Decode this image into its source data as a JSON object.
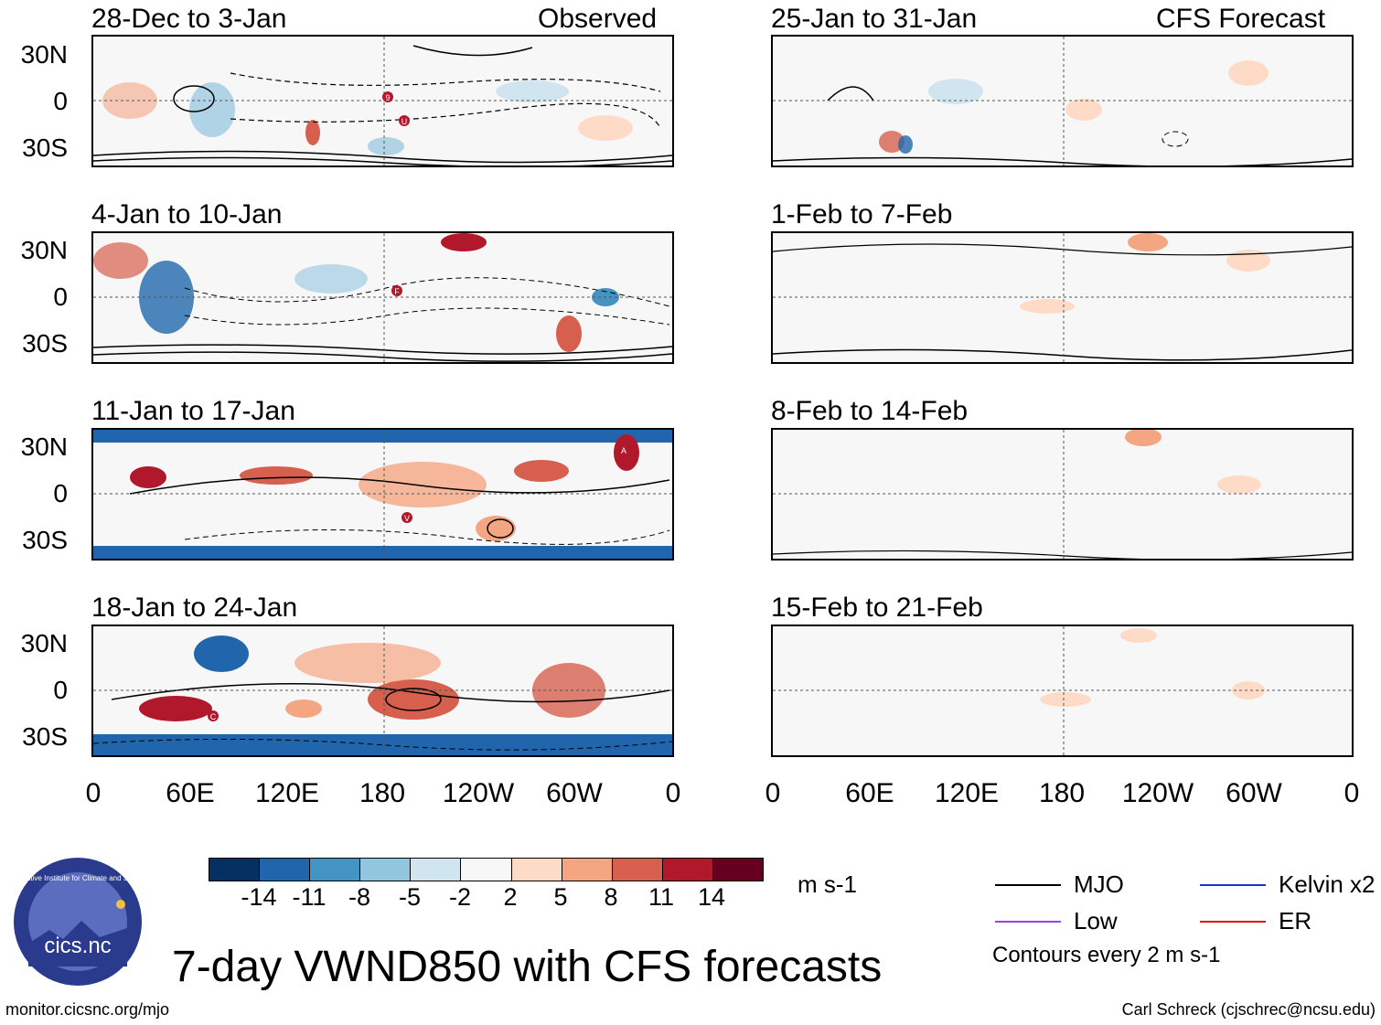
{
  "title": "7-day VWND850 with CFS forecasts",
  "observed_label": "Observed",
  "forecast_label": "CFS Forecast",
  "lat_labels": [
    "30N",
    "0",
    "30S"
  ],
  "lon_labels": [
    "0",
    "60E",
    "120E",
    "180",
    "120W",
    "60W",
    "0"
  ],
  "panels": {
    "obs": [
      "28-Dec to 3-Jan",
      "4-Jan to 10-Jan",
      "11-Jan to 17-Jan",
      "18-Jan to 24-Jan"
    ],
    "fcst": [
      "25-Jan to 31-Jan",
      "1-Feb to 7-Feb",
      "8-Feb to 14-Feb",
      "15-Feb to 21-Feb"
    ]
  },
  "colorbar": {
    "ticks": [
      "-14",
      "-11",
      "-8",
      "-5",
      "-2",
      "2",
      "5",
      "8",
      "11",
      "14"
    ],
    "colors": [
      "#053061",
      "#2166ac",
      "#4393c3",
      "#92c5de",
      "#d1e5f0",
      "#f7f7f7",
      "#fddbc7",
      "#f4a582",
      "#d6604d",
      "#b2182b",
      "#67001f"
    ],
    "units": "m s-1"
  },
  "legend": [
    {
      "label": "MJO",
      "color": "#000000"
    },
    {
      "label": "Kelvin x2",
      "color": "#1f2fd6"
    },
    {
      "label": "Low",
      "color": "#a040e0"
    },
    {
      "label": "ER",
      "color": "#e01010"
    }
  ],
  "contour_note": "Contours every 2 m s-1",
  "logo_text": "cics.nc",
  "logo_ring_text": "Cooperative Institute for Climate and Satellites",
  "footer_left": "monitor.cicsnc.org/mjo",
  "footer_right": "Carl Schreck (cjschrec@ncsu.edu)",
  "markers": {
    "obs0": [
      "9",
      "U"
    ],
    "obs1": [
      "F"
    ],
    "obs2": [
      "A",
      "V"
    ],
    "obs3": [
      "C"
    ]
  }
}
